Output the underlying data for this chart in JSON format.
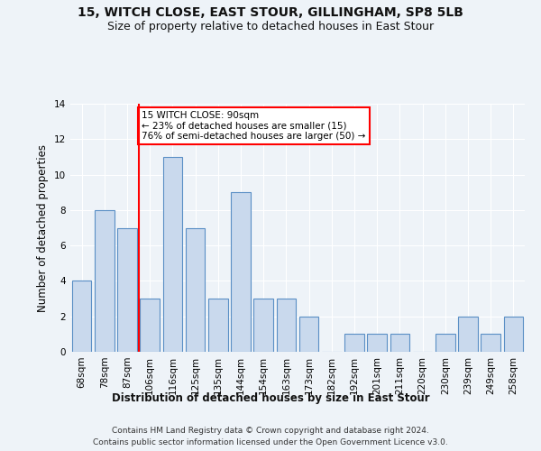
{
  "title": "15, WITCH CLOSE, EAST STOUR, GILLINGHAM, SP8 5LB",
  "subtitle": "Size of property relative to detached houses in East Stour",
  "xlabel": "Distribution of detached houses by size in East Stour",
  "ylabel": "Number of detached properties",
  "bar_labels": [
    "68sqm",
    "78sqm",
    "87sqm",
    "106sqm",
    "116sqm",
    "125sqm",
    "135sqm",
    "144sqm",
    "154sqm",
    "163sqm",
    "173sqm",
    "182sqm",
    "192sqm",
    "201sqm",
    "211sqm",
    "220sqm",
    "230sqm",
    "239sqm",
    "249sqm",
    "258sqm"
  ],
  "bar_values": [
    4,
    8,
    7,
    3,
    11,
    7,
    3,
    9,
    3,
    3,
    2,
    0,
    1,
    1,
    1,
    0,
    1,
    2,
    1,
    2
  ],
  "bar_color": "#c9d9ed",
  "bar_edge_color": "#5a8fc5",
  "annotation_title": "15 WITCH CLOSE: 90sqm",
  "annotation_line1": "← 23% of detached houses are smaller (15)",
  "annotation_line2": "76% of semi-detached houses are larger (50) →",
  "red_line_x": 2.5,
  "ylim": [
    0,
    14
  ],
  "yticks": [
    0,
    2,
    4,
    6,
    8,
    10,
    12,
    14
  ],
  "bg_color": "#eef3f8",
  "plot_bg_color": "#eef3f8",
  "annotation_box_color": "white",
  "annotation_box_edge": "red",
  "footer_line1": "Contains HM Land Registry data © Crown copyright and database right 2024.",
  "footer_line2": "Contains public sector information licensed under the Open Government Licence v3.0."
}
